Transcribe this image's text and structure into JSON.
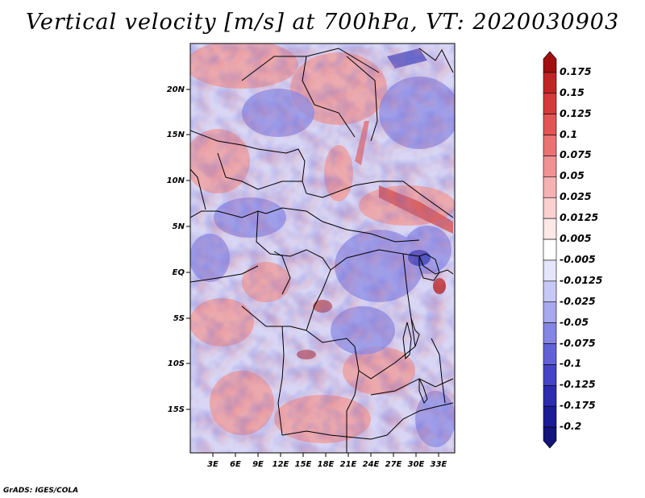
{
  "title": "Vertical velocity [m/s] at 700hPa, VT: 2020030903",
  "credit": "GrADS: IGES/COLA",
  "map": {
    "variable": "Vertical velocity",
    "units": "m/s",
    "level": "700hPa",
    "valid_time": "2020030903",
    "lat_labels": [
      "20N",
      "15N",
      "10N",
      "5N",
      "EQ",
      "5S",
      "10S",
      "15S"
    ],
    "lon_labels": [
      "3E",
      "6E",
      "9E",
      "12E",
      "15E",
      "18E",
      "21E",
      "24E",
      "27E",
      "30E",
      "33E"
    ]
  },
  "colorbar": {
    "labels": [
      "0.175",
      "0.15",
      "0.125",
      "0.1",
      "0.075",
      "0.05",
      "0.025",
      "0.0125",
      "0.005",
      "-0.005",
      "-0.0125",
      "-0.025",
      "-0.05",
      "-0.075",
      "-0.1",
      "-0.125",
      "-0.175",
      "-0.2"
    ],
    "colors": [
      "#a01010",
      "#c02525",
      "#d43a3a",
      "#e25555",
      "#ea7272",
      "#f09292",
      "#f6b2b2",
      "#fad0d0",
      "#fde8e8",
      "#ffffff",
      "#e4e4fb",
      "#c8c8f6",
      "#a8a8ee",
      "#8585e4",
      "#6262d6",
      "#4444c4",
      "#2c2cad",
      "#1c1c96",
      "#14147a"
    ]
  }
}
